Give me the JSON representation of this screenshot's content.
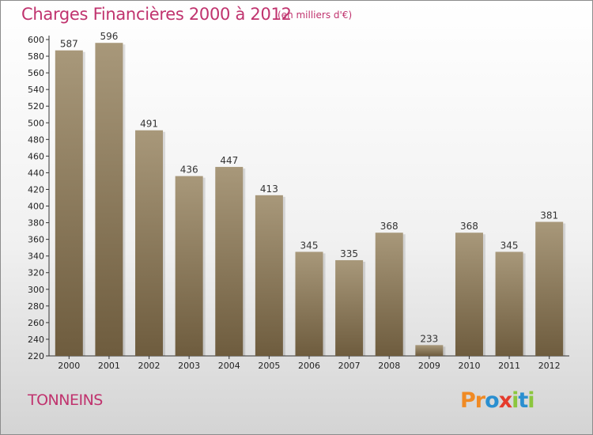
{
  "header": {
    "title": "Charges Financières 2000 à 2012",
    "subtitle": "(en milliers d'€)"
  },
  "footer": {
    "place": "TONNEINS",
    "logo_text": "Proxiti"
  },
  "colors": {
    "title": "#c0336e",
    "bar_top": "#a8987a",
    "bar_bottom": "#6e5c3e",
    "logo_letters": [
      "#f08a24",
      "#f08a24",
      "#2a8fd0",
      "#e53b2c",
      "#8cc63e",
      "#2a8fd0",
      "#8cc63e"
    ]
  },
  "chart_data": {
    "type": "bar",
    "title": "Charges Financières 2000 à 2012",
    "subtitle": "(en milliers d'€)",
    "categories": [
      "2000",
      "2001",
      "2002",
      "2003",
      "2004",
      "2005",
      "2006",
      "2007",
      "2008",
      "2009",
      "2010",
      "2011",
      "2012"
    ],
    "values": [
      587,
      596,
      491,
      436,
      447,
      413,
      345,
      335,
      368,
      233,
      368,
      345,
      381
    ],
    "ylim": [
      220,
      600
    ],
    "yticks": [
      220,
      240,
      260,
      280,
      300,
      320,
      340,
      360,
      380,
      400,
      420,
      440,
      460,
      480,
      500,
      520,
      540,
      560,
      580,
      600
    ],
    "xlabel": "",
    "ylabel": "",
    "grid": false,
    "data_labels": true
  }
}
